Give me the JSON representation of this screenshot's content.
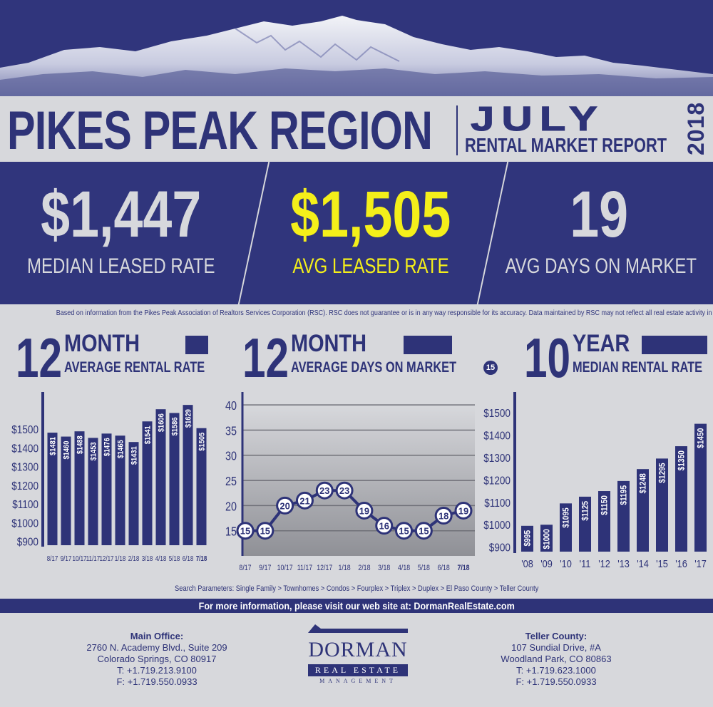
{
  "header": {
    "title": "PIKES PEAK REGION",
    "month": "JULY",
    "subtitle": "RENTAL MARKET REPORT",
    "year": "2018"
  },
  "stats": [
    {
      "value": "$1,447",
      "label": "MEDIAN LEASED RATE",
      "color": "#d7d8dc"
    },
    {
      "value": "$1,505",
      "label": "AVG LEASED RATE",
      "color": "#f4ef1a"
    },
    {
      "value": "19",
      "label": "AVG DAYS ON MARKET",
      "color": "#d7d8dc"
    }
  ],
  "disclaimer": "Based on information from the Pikes Peak Association of Realtors Services Corporation (RSC). RSC does not guarantee or is in any way responsible for its accuracy. Data maintained by RSC may not reflect all real estate activity in the market.",
  "sections": {
    "rental_rate": {
      "num": "12",
      "top": "MONTH",
      "sub": "AVERAGE RENTAL RATE"
    },
    "days": {
      "num": "12",
      "top": "MONTH",
      "sub": "AVERAGE DAYS ON MARKET",
      "badge": "15"
    },
    "median": {
      "num": "10",
      "top": "YEAR",
      "sub": "MEDIAN RENTAL RATE"
    }
  },
  "chart_data": [
    {
      "type": "bar",
      "categories": [
        "8/17",
        "9/17",
        "10/17",
        "11/17",
        "12/17",
        "1/18",
        "2/18",
        "3/18",
        "4/18",
        "5/18",
        "6/18",
        "7/18"
      ],
      "values": [
        1481,
        1460,
        1488,
        1453,
        1476,
        1465,
        1431,
        1541,
        1606,
        1586,
        1629,
        1505
      ],
      "labels": [
        "$1481",
        "$1460",
        "$1488",
        "$1453",
        "$1476",
        "$1465",
        "$1431",
        "$1541",
        "$1606",
        "$1586",
        "$1629",
        "$1505"
      ],
      "yticks": [
        "$1500",
        "$1400",
        "$1300",
        "$1200",
        "$1100",
        "$1000",
        "$900"
      ],
      "ylim": [
        880,
        1660
      ]
    },
    {
      "type": "line",
      "categories": [
        "8/17",
        "9/17",
        "10/17",
        "11/17",
        "12/17",
        "1/18",
        "2/18",
        "3/18",
        "4/18",
        "5/18",
        "6/18",
        "7/18"
      ],
      "values": [
        15,
        15,
        20,
        21,
        23,
        23,
        19,
        16,
        15,
        15,
        18,
        19
      ],
      "yticks": [
        "40",
        "35",
        "30",
        "25",
        "20",
        "15"
      ],
      "ylim": [
        10,
        42
      ],
      "grid": true
    },
    {
      "type": "bar",
      "categories": [
        "'08",
        "'09",
        "'10",
        "'11",
        "'12",
        "'13",
        "'14",
        "'15",
        "'16",
        "'17"
      ],
      "values": [
        995,
        1000,
        1095,
        1125,
        1150,
        1195,
        1248,
        1295,
        1350,
        1450
      ],
      "labels": [
        "$995",
        "$1000",
        "$1095",
        "$1125",
        "$1150",
        "$1195",
        "$1248",
        "$1295",
        "$1350",
        "$1450"
      ],
      "yticks": [
        "$1500",
        "$1400",
        "$1300",
        "$1200",
        "$1100",
        "$1000",
        "$900"
      ],
      "ylim": [
        880,
        1560
      ]
    }
  ],
  "search_params": "Search Parameters: Single Family > Townhomes > Condos > Fourplex > Triplex > Duplex > El Paso County > Teller County",
  "info_strip": "For more information, please visit our web site at: DormanRealEstate.com",
  "offices": {
    "main": {
      "title": "Main Office:",
      "lines": [
        "2760 N. Academy Blvd.,  Suite 209",
        "Colorado Springs, CO 80917",
        "T: +1.719.213.9100",
        "F: +1.719.550.0933"
      ]
    },
    "teller": {
      "title": "Teller County:",
      "lines": [
        "107 Sundial Drive, #A",
        "Woodland Park, CO 80863",
        "T: +1.719.623.1000",
        "F: +1.719.550.0933"
      ]
    }
  },
  "logo": {
    "name": "DORMAN",
    "band": "REAL ESTATE",
    "mgmt": "MANAGEMENT"
  }
}
